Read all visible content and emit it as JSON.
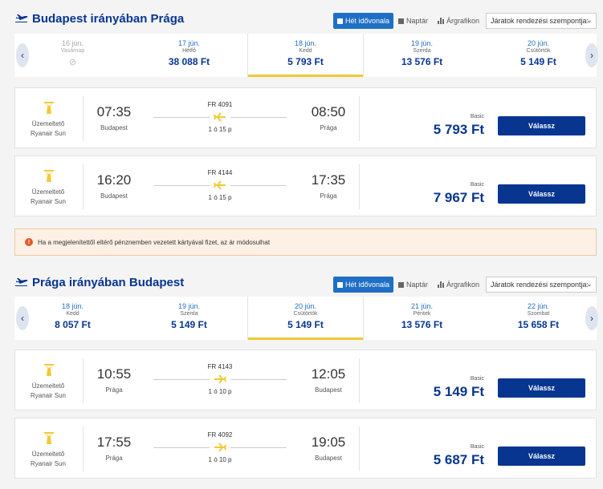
{
  "toolbar": {
    "week_view": "Hét idővonala",
    "calendar": "Naptár",
    "price_chart": "Árgrafikon",
    "sort_placeholder": "Járatok rendezési szempontja:"
  },
  "outbound": {
    "title": "Budapest irányában Prága",
    "days": [
      {
        "date": "16 jún.",
        "weekday": "Vasárnap",
        "price": "",
        "disabled": true
      },
      {
        "date": "17 jún.",
        "weekday": "Hétfő",
        "price": "38 088 Ft"
      },
      {
        "date": "18 jún.",
        "weekday": "Kedd",
        "price": "5 793 Ft",
        "selected": true
      },
      {
        "date": "19 jún.",
        "weekday": "Szerda",
        "price": "13 576 Ft"
      },
      {
        "date": "20 jún.",
        "weekday": "Csütörtök",
        "price": "5 149 Ft"
      }
    ],
    "flights": [
      {
        "operator_label": "Üzemeltető",
        "operator": "Ryanair Sun",
        "dep_time": "07:35",
        "dep_city": "Budapest",
        "arr_time": "08:50",
        "arr_city": "Prága",
        "flight_no": "FR 4091",
        "duration": "1 ó 15 p",
        "fare": "Basic",
        "price": "5 793 Ft",
        "select": "Válassz"
      },
      {
        "operator_label": "Üzemeltető",
        "operator": "Ryanair Sun",
        "dep_time": "16:20",
        "dep_city": "Budapest",
        "arr_time": "17:35",
        "arr_city": "Prága",
        "flight_no": "FR 4144",
        "duration": "1 ó 15 p",
        "fare": "Basic",
        "price": "7 967 Ft",
        "select": "Válassz"
      }
    ]
  },
  "warning": "Ha a megjelenítettől eltérő pénznemben vezetett kártyával fizet, az ár módosulhat",
  "inbound": {
    "title": "Prága irányában Budapest",
    "days": [
      {
        "date": "18 jún.",
        "weekday": "Kedd",
        "price": "8 057 Ft"
      },
      {
        "date": "19 jún.",
        "weekday": "Szerda",
        "price": "5 149 Ft"
      },
      {
        "date": "20 jún.",
        "weekday": "Csütörtök",
        "price": "5 149 Ft",
        "selected": true
      },
      {
        "date": "21 jún.",
        "weekday": "Péntek",
        "price": "13 576 Ft"
      },
      {
        "date": "22 jún.",
        "weekday": "Szombat",
        "price": "15 658 Ft"
      }
    ],
    "flights": [
      {
        "operator_label": "Üzemeltető",
        "operator": "Ryanair Sun",
        "dep_time": "10:55",
        "dep_city": "Prága",
        "arr_time": "12:05",
        "arr_city": "Budapest",
        "flight_no": "FR 4143",
        "duration": "1 ó 10 p",
        "fare": "Basic",
        "price": "5 149 Ft",
        "select": "Válassz"
      },
      {
        "operator_label": "Üzemeltető",
        "operator": "Ryanair Sun",
        "dep_time": "17:55",
        "dep_city": "Prága",
        "arr_time": "19:05",
        "arr_city": "Budapest",
        "flight_no": "FR 4092",
        "duration": "1 ó 10 p",
        "fare": "Basic",
        "price": "5 687 Ft",
        "select": "Válassz"
      }
    ]
  },
  "colors": {
    "brand_blue": "#073590",
    "accent_blue": "#1f6fc5",
    "selected_underline": "#f1c933",
    "logo_yellow": "#f1c933"
  }
}
